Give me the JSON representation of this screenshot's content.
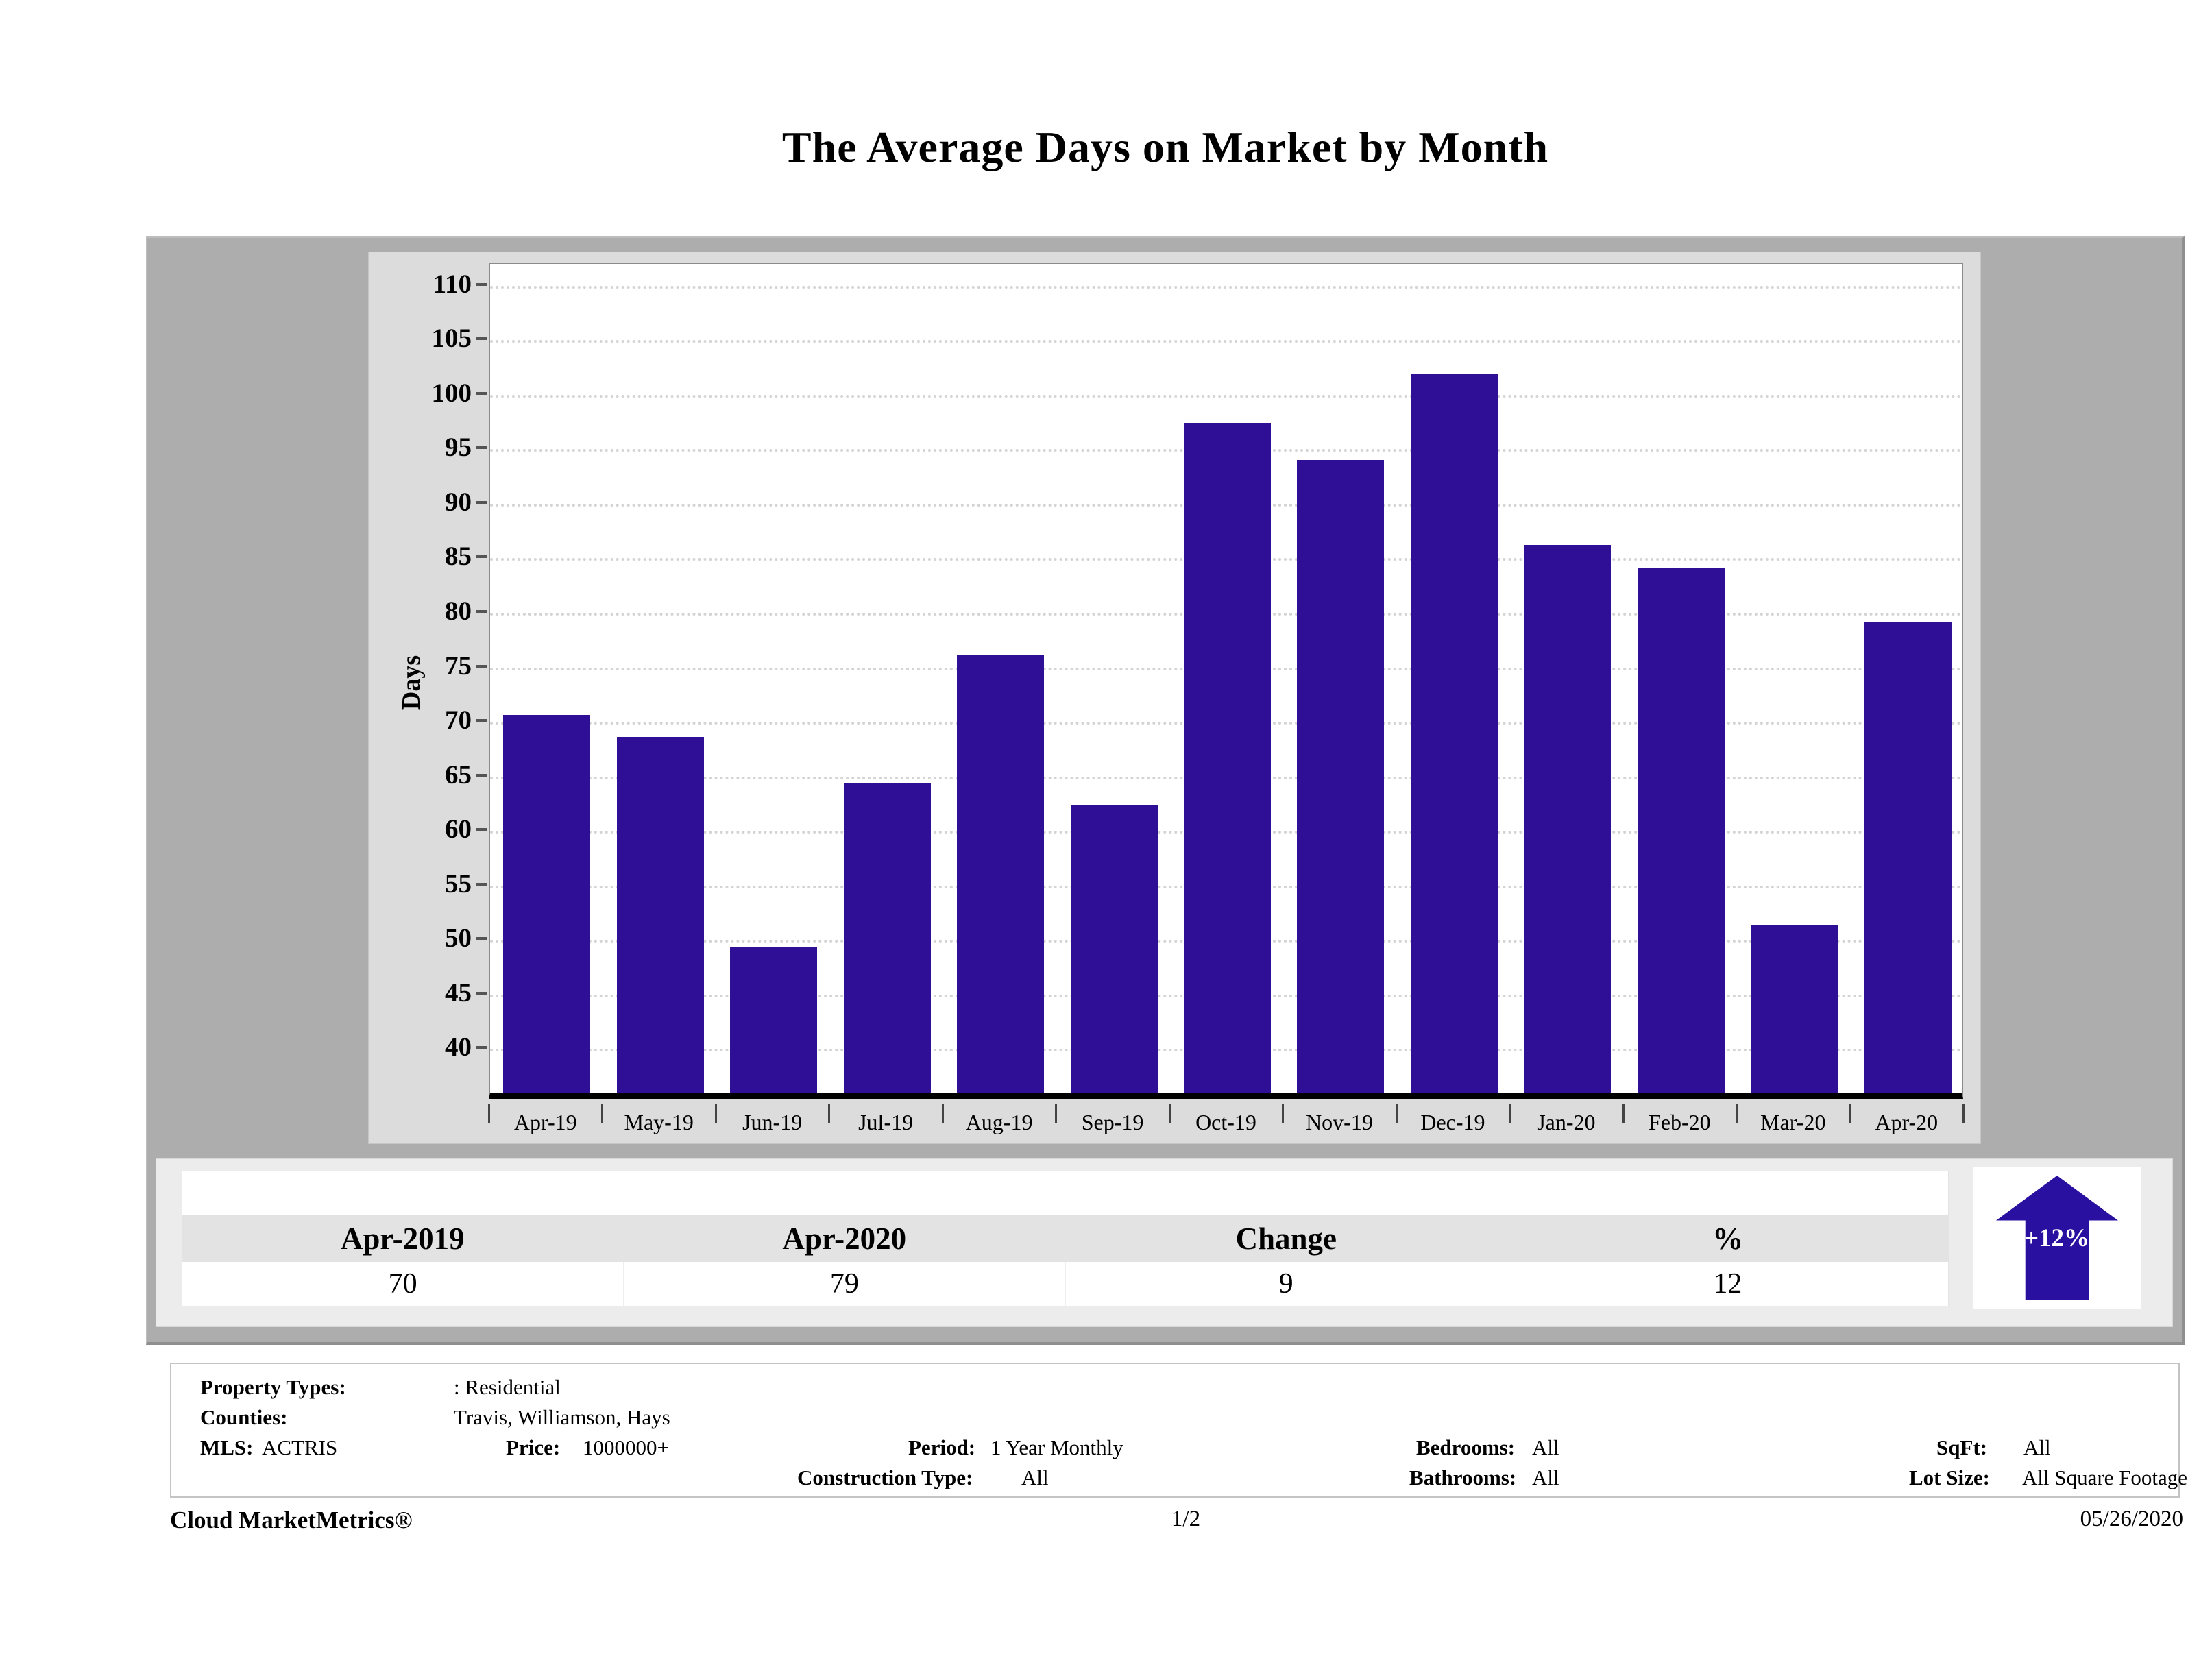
{
  "title": "The Average Days on Market by Month",
  "chart_data": {
    "type": "bar",
    "title": "The Average Days on Market by Month",
    "xlabel": "",
    "ylabel": "Days",
    "categories": [
      "Apr-19",
      "May-19",
      "Jun-19",
      "Jul-19",
      "Aug-19",
      "Sep-19",
      "Oct-19",
      "Nov-19",
      "Dec-19",
      "Jan-20",
      "Feb-20",
      "Mar-20",
      "Apr-20"
    ],
    "values": [
      70,
      68,
      48.7,
      63.7,
      75.5,
      61.7,
      96.8,
      93.4,
      101.3,
      85.6,
      83.5,
      50.7,
      78.5
    ],
    "ylim": [
      35.3,
      112
    ],
    "yticks": [
      40,
      45,
      50,
      55,
      60,
      65,
      70,
      75,
      80,
      85,
      90,
      95,
      100,
      105,
      110
    ],
    "bar_color": "#2e0f96",
    "grid": "horizontal-dotted",
    "legend": "none"
  },
  "summary_table": {
    "headers": [
      "Apr-2019",
      "Apr-2020",
      "Change",
      "%"
    ],
    "values": [
      "70",
      "79",
      "9",
      "12"
    ]
  },
  "change_badge": {
    "label": "+12%",
    "direction": "up",
    "color": "#2a10a0"
  },
  "filters": {
    "property_types_label": "Property Types:",
    "property_types_value": ": Residential",
    "counties_label": "Counties:",
    "counties_value": "Travis, Williamson, Hays",
    "mls_label": "MLS:",
    "mls_value": "ACTRIS",
    "price_label": "Price:",
    "price_value": "1000000+",
    "period_label": "Period:",
    "period_value": "1 Year Monthly",
    "construction_label": "Construction Type:",
    "construction_value": "All",
    "bedrooms_label": "Bedrooms:",
    "bedrooms_value": "All",
    "bathrooms_label": "Bathrooms:",
    "bathrooms_value": "All",
    "sqft_label": "SqFt:",
    "sqft_value": "All",
    "lotsize_label": "Lot Size:",
    "lotsize_value": "All Square Footage"
  },
  "footer": {
    "left": "Cloud MarketMetrics®",
    "center": "1/2",
    "right": "05/26/2020"
  }
}
